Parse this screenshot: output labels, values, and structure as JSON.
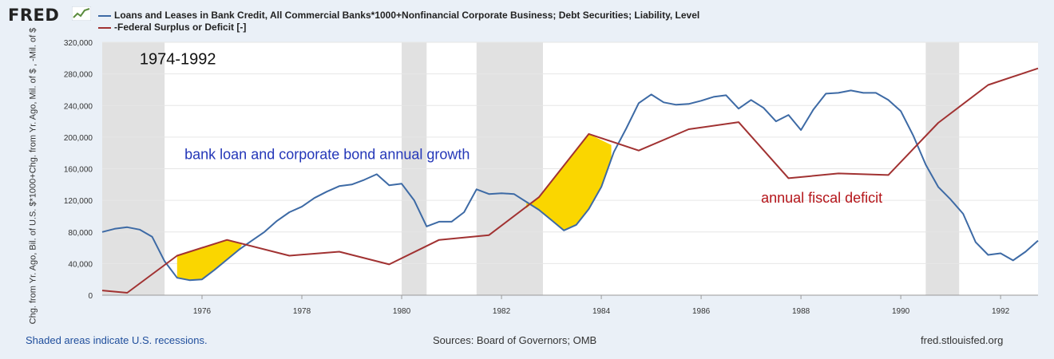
{
  "header": {
    "logo_text": "FRED",
    "legend": [
      {
        "label": "Loans and Leases in Bank Credit, All Commercial Banks*1000+Nonfinancial Corporate Business; Debt Securities; Liability, Level",
        "color": "#3d6aa5"
      },
      {
        "label": "-Federal Surplus or Deficit [-]",
        "color": "#a13232"
      }
    ]
  },
  "footer": {
    "recession_note": "Shaded areas indicate U.S. recessions.",
    "sources": "Sources: Board of Governors; OMB",
    "site": "fred.stlouisfed.org"
  },
  "chart_data": {
    "type": "line",
    "ylabel": "Chg. from Yr. Ago, Bil. of U.S. $*1000+Chg. from Yr. Ago, Mil. of $ , -Mil. of $",
    "ylim": [
      0,
      320000
    ],
    "yticks": [
      "0",
      "40,000",
      "80,000",
      "120,000",
      "160,000",
      "200,000",
      "240,000",
      "280,000",
      "320,000"
    ],
    "xlim": [
      1974.0,
      1992.75
    ],
    "xticks": [
      "1976",
      "1978",
      "1980",
      "1982",
      "1984",
      "1986",
      "1988",
      "1990",
      "1992"
    ],
    "grid": true,
    "recessions": [
      [
        1974.0,
        1975.25
      ],
      [
        1980.0,
        1980.5
      ],
      [
        1981.5,
        1982.83
      ],
      [
        1990.5,
        1991.17
      ]
    ],
    "series": [
      {
        "name": "Loans and Leases in Bank Credit, All Commercial Banks*1000+Nonfinancial Corporate Business; Debt Securities; Liability, Level",
        "color": "#3d6aa5",
        "points": [
          [
            1974.0,
            80000
          ],
          [
            1974.25,
            84000
          ],
          [
            1974.5,
            86000
          ],
          [
            1974.75,
            83000
          ],
          [
            1975.0,
            74000
          ],
          [
            1975.25,
            43000
          ],
          [
            1975.5,
            22000
          ],
          [
            1975.75,
            19000
          ],
          [
            1976.0,
            20000
          ],
          [
            1976.25,
            32000
          ],
          [
            1976.5,
            45000
          ],
          [
            1976.75,
            58000
          ],
          [
            1977.0,
            69000
          ],
          [
            1977.25,
            80000
          ],
          [
            1977.5,
            94000
          ],
          [
            1977.75,
            105000
          ],
          [
            1978.0,
            112000
          ],
          [
            1978.25,
            123000
          ],
          [
            1978.5,
            131000
          ],
          [
            1978.75,
            138000
          ],
          [
            1979.0,
            140000
          ],
          [
            1979.25,
            146000
          ],
          [
            1979.5,
            153000
          ],
          [
            1979.75,
            139000
          ],
          [
            1980.0,
            141000
          ],
          [
            1980.25,
            120000
          ],
          [
            1980.5,
            87000
          ],
          [
            1980.75,
            93000
          ],
          [
            1981.0,
            93000
          ],
          [
            1981.25,
            105000
          ],
          [
            1981.5,
            134000
          ],
          [
            1981.75,
            128000
          ],
          [
            1982.0,
            129000
          ],
          [
            1982.25,
            128000
          ],
          [
            1982.5,
            118000
          ],
          [
            1982.75,
            108000
          ],
          [
            1983.0,
            95000
          ],
          [
            1983.25,
            82000
          ],
          [
            1983.5,
            89000
          ],
          [
            1983.75,
            109000
          ],
          [
            1984.0,
            137000
          ],
          [
            1984.25,
            181000
          ],
          [
            1984.5,
            211000
          ],
          [
            1984.75,
            243000
          ],
          [
            1985.0,
            254000
          ],
          [
            1985.25,
            244000
          ],
          [
            1985.5,
            241000
          ],
          [
            1985.75,
            242000
          ],
          [
            1986.0,
            246000
          ],
          [
            1986.25,
            251000
          ],
          [
            1986.5,
            253000
          ],
          [
            1986.75,
            236000
          ],
          [
            1987.0,
            247000
          ],
          [
            1987.25,
            237000
          ],
          [
            1987.5,
            220000
          ],
          [
            1987.75,
            228000
          ],
          [
            1988.0,
            209000
          ],
          [
            1988.25,
            235000
          ],
          [
            1988.5,
            255000
          ],
          [
            1988.75,
            256000
          ],
          [
            1989.0,
            259000
          ],
          [
            1989.25,
            256000
          ],
          [
            1989.5,
            256000
          ],
          [
            1989.75,
            247000
          ],
          [
            1990.0,
            233000
          ],
          [
            1990.25,
            202000
          ],
          [
            1990.5,
            165000
          ],
          [
            1990.75,
            137000
          ],
          [
            1991.0,
            121000
          ],
          [
            1991.25,
            103000
          ],
          [
            1991.5,
            67000
          ],
          [
            1991.75,
            51000
          ],
          [
            1992.0,
            53000
          ],
          [
            1992.25,
            44000
          ],
          [
            1992.5,
            55000
          ],
          [
            1992.75,
            69000
          ]
        ]
      },
      {
        "name": "-Federal Surplus or Deficit [-]",
        "color": "#a13232",
        "points": [
          [
            1974.0,
            6000
          ],
          [
            1974.5,
            3000
          ],
          [
            1975.5,
            50000
          ],
          [
            1976.5,
            70000
          ],
          [
            1977.75,
            50000
          ],
          [
            1978.75,
            55000
          ],
          [
            1979.75,
            39000
          ],
          [
            1980.75,
            70000
          ],
          [
            1981.75,
            76000
          ],
          [
            1982.75,
            124000
          ],
          [
            1983.75,
            204000
          ],
          [
            1984.75,
            183000
          ],
          [
            1985.75,
            210000
          ],
          [
            1986.75,
            219000
          ],
          [
            1987.75,
            148000
          ],
          [
            1988.75,
            154000
          ],
          [
            1989.75,
            152000
          ],
          [
            1990.75,
            218000
          ],
          [
            1991.75,
            266000
          ],
          [
            1992.75,
            287000
          ]
        ]
      }
    ],
    "annotations": [
      {
        "text": "1974-1992",
        "x": 1974.75,
        "y": 292000,
        "color": "#111111"
      },
      {
        "text": "bank loan and corporate bond annual growth",
        "x": 1975.65,
        "y": 172000,
        "color": "#2437b8"
      },
      {
        "text": "annual fiscal deficit",
        "x": 1987.2,
        "y": 117000,
        "color": "#b5161b"
      }
    ],
    "highlights": [
      {
        "label": "",
        "color": "#fad600",
        "upper": [
          [
            1975.5,
            50000
          ],
          [
            1976.0,
            59000
          ],
          [
            1976.5,
            70000
          ],
          [
            1976.8,
            64000
          ]
        ],
        "lower": [
          [
            1975.5,
            22000
          ],
          [
            1975.75,
            19000
          ],
          [
            1976.0,
            20000
          ],
          [
            1976.25,
            32000
          ],
          [
            1976.5,
            45000
          ],
          [
            1976.75,
            58000
          ],
          [
            1976.8,
            64000
          ]
        ]
      },
      {
        "label": "",
        "color": "#fad600",
        "upper": [
          [
            1982.5,
            110000
          ],
          [
            1982.75,
            124000
          ],
          [
            1983.25,
            165000
          ],
          [
            1983.75,
            204000
          ],
          [
            1984.2,
            190000
          ]
        ],
        "lower": [
          [
            1982.5,
            118000
          ],
          [
            1982.75,
            108000
          ],
          [
            1983.0,
            95000
          ],
          [
            1983.25,
            82000
          ],
          [
            1983.5,
            89000
          ],
          [
            1983.75,
            109000
          ],
          [
            1984.0,
            137000
          ],
          [
            1984.2,
            172000
          ]
        ]
      }
    ]
  }
}
